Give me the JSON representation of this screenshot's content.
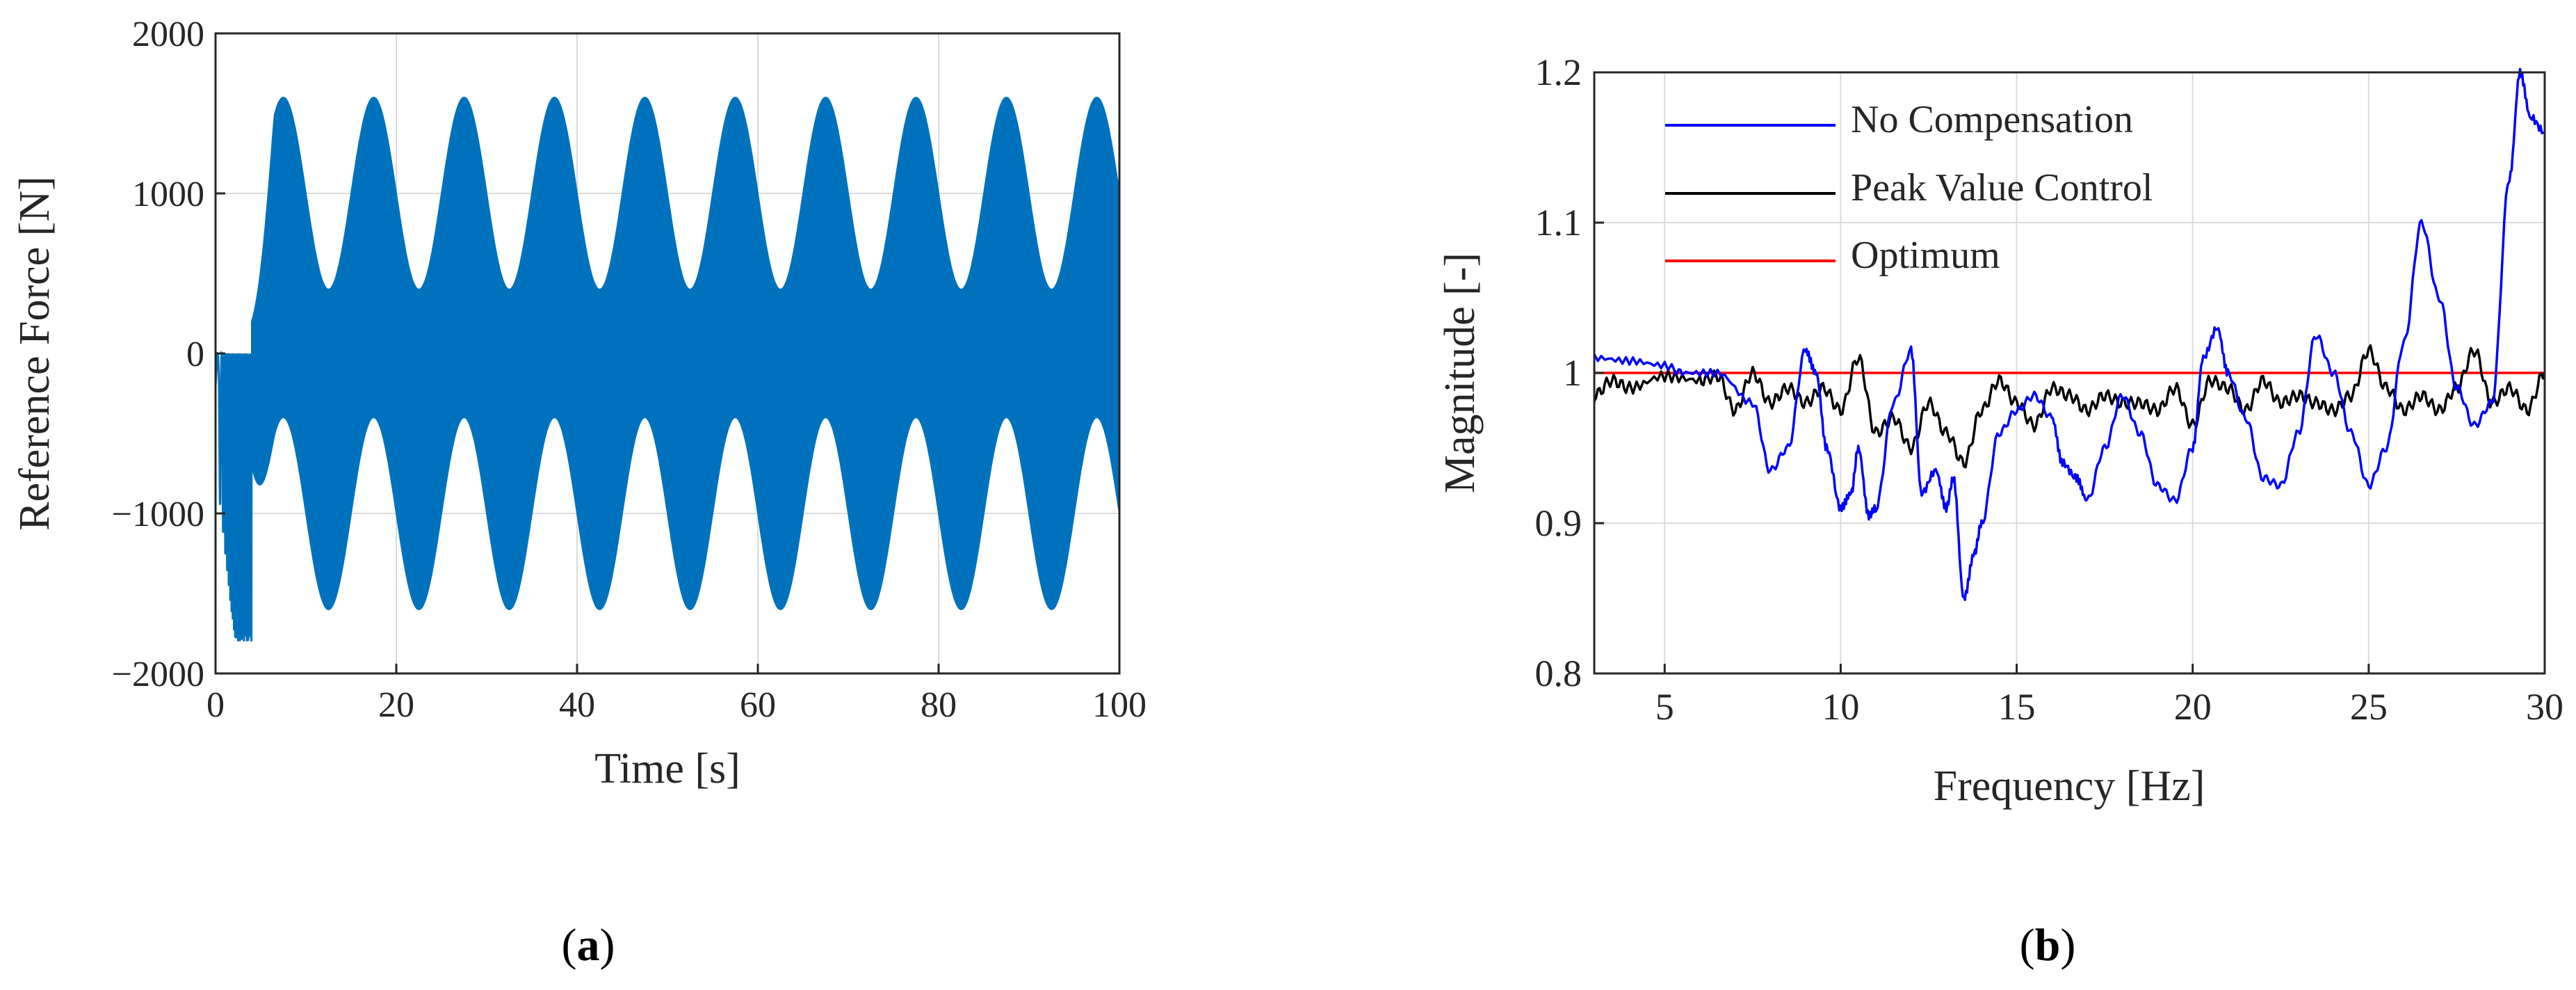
{
  "chart_data": [
    {
      "panel": "a",
      "type": "line",
      "title": "",
      "xlabel": "Time [s]",
      "ylabel": "Reference Force [N]",
      "xlim": [
        0,
        100
      ],
      "ylim": [
        -2000,
        2000
      ],
      "xticks": [
        "0",
        "20",
        "40",
        "60",
        "80",
        "100"
      ],
      "yticks": [
        "2000",
        "1000",
        "0",
        "−1000",
        "−2000"
      ],
      "grid": true,
      "series": [
        {
          "color": "#0072BD",
          "description_envelope": {
            "upper_max": 1600,
            "upper_min": 400,
            "lower_max": -400,
            "lower_min": -1600,
            "envelope_period_s": 10,
            "first_upper_peak_s": 7.5
          },
          "startup_region_s": [
            0,
            4
          ],
          "startup_values": [
            -1600,
            200
          ]
        }
      ]
    },
    {
      "panel": "b",
      "type": "line",
      "title": "",
      "xlabel": "Frequency [Hz]",
      "ylabel": "Magnitude [-]",
      "xlim": [
        3,
        30
      ],
      "ylim": [
        0.8,
        1.2
      ],
      "xticks": [
        "5",
        "10",
        "15",
        "20",
        "25",
        "30"
      ],
      "yticks": [
        "1.2",
        "1.1",
        "1",
        "0.9",
        "0.8"
      ],
      "grid": true,
      "legend": "top-left",
      "series": [
        {
          "name": "No Compensation",
          "color": "#0000FF",
          "x": [
            3,
            4,
            5,
            5.5,
            6.5,
            7.5,
            8,
            8.5,
            9,
            9.3,
            9.6,
            10,
            10.3,
            10.5,
            10.8,
            11,
            11.5,
            12,
            12.3,
            12.7,
            13,
            13.2,
            13.5,
            13.8,
            14,
            14.5,
            15,
            15.5,
            16,
            16.3,
            16.7,
            17,
            17.5,
            18,
            18.5,
            19,
            19.5,
            20,
            20.3,
            20.7,
            21,
            21.5,
            22,
            22.5,
            23,
            23.5,
            24,
            24.5,
            25,
            25.5,
            26,
            26.5,
            27,
            27.5,
            28,
            28.5,
            29,
            29.3,
            29.6,
            30
          ],
          "y": [
            1.01,
            1.008,
            1.005,
            1.0,
            1.0,
            0.98,
            0.935,
            0.95,
            1.015,
            1.0,
            0.95,
            0.91,
            0.92,
            0.95,
            0.905,
            0.91,
            0.98,
            1.015,
            0.92,
            0.935,
            0.91,
            0.93,
            0.85,
            0.88,
            0.9,
            0.96,
            0.975,
            0.985,
            0.97,
            0.94,
            0.93,
            0.915,
            0.95,
            0.985,
            0.96,
            0.925,
            0.915,
            0.95,
            1.01,
            1.03,
            1.0,
            0.97,
            0.93,
            0.925,
            0.96,
            1.025,
            1.0,
            0.96,
            0.925,
            0.95,
            1.02,
            1.1,
            1.05,
            0.99,
            0.965,
            0.98,
            1.13,
            1.2,
            1.17,
            1.16
          ]
        },
        {
          "name": "Peak Value Control",
          "color": "#000000",
          "x": [
            3,
            3.5,
            4,
            5,
            6,
            6.5,
            7,
            7.5,
            8,
            8.5,
            9,
            9.5,
            10,
            10.5,
            11,
            11.5,
            12,
            12.5,
            13,
            13.5,
            14,
            14.5,
            15,
            15.5,
            16,
            16.5,
            17,
            17.5,
            18,
            18.5,
            19,
            19.5,
            20,
            20.5,
            21,
            21.5,
            22,
            22.5,
            23,
            23.5,
            24,
            24.5,
            25,
            25.5,
            26,
            26.5,
            27,
            27.5,
            28,
            28.5,
            29,
            29.5,
            30
          ],
          "y": [
            0.985,
            0.995,
            0.99,
            0.998,
            0.995,
            0.998,
            0.975,
            1.0,
            0.98,
            0.99,
            0.98,
            0.99,
            0.975,
            1.01,
            0.96,
            0.97,
            0.95,
            0.98,
            0.96,
            0.94,
            0.975,
            0.995,
            0.98,
            0.965,
            0.99,
            0.985,
            0.975,
            0.985,
            0.98,
            0.98,
            0.975,
            0.99,
            0.965,
            0.995,
            0.99,
            0.975,
            0.995,
            0.98,
            0.985,
            0.98,
            0.975,
            0.985,
            1.015,
            0.99,
            0.975,
            0.985,
            0.975,
            0.99,
            1.015,
            0.98,
            0.99,
            0.975,
            1.0
          ]
        },
        {
          "name": "Optimum",
          "color": "#FF0000",
          "x": [
            3,
            30
          ],
          "y": [
            1,
            1
          ]
        }
      ]
    }
  ],
  "captions": {
    "a": {
      "open": "(",
      "letter": "a",
      "close": ")"
    },
    "b": {
      "open": "(",
      "letter": "b",
      "close": ")"
    }
  }
}
